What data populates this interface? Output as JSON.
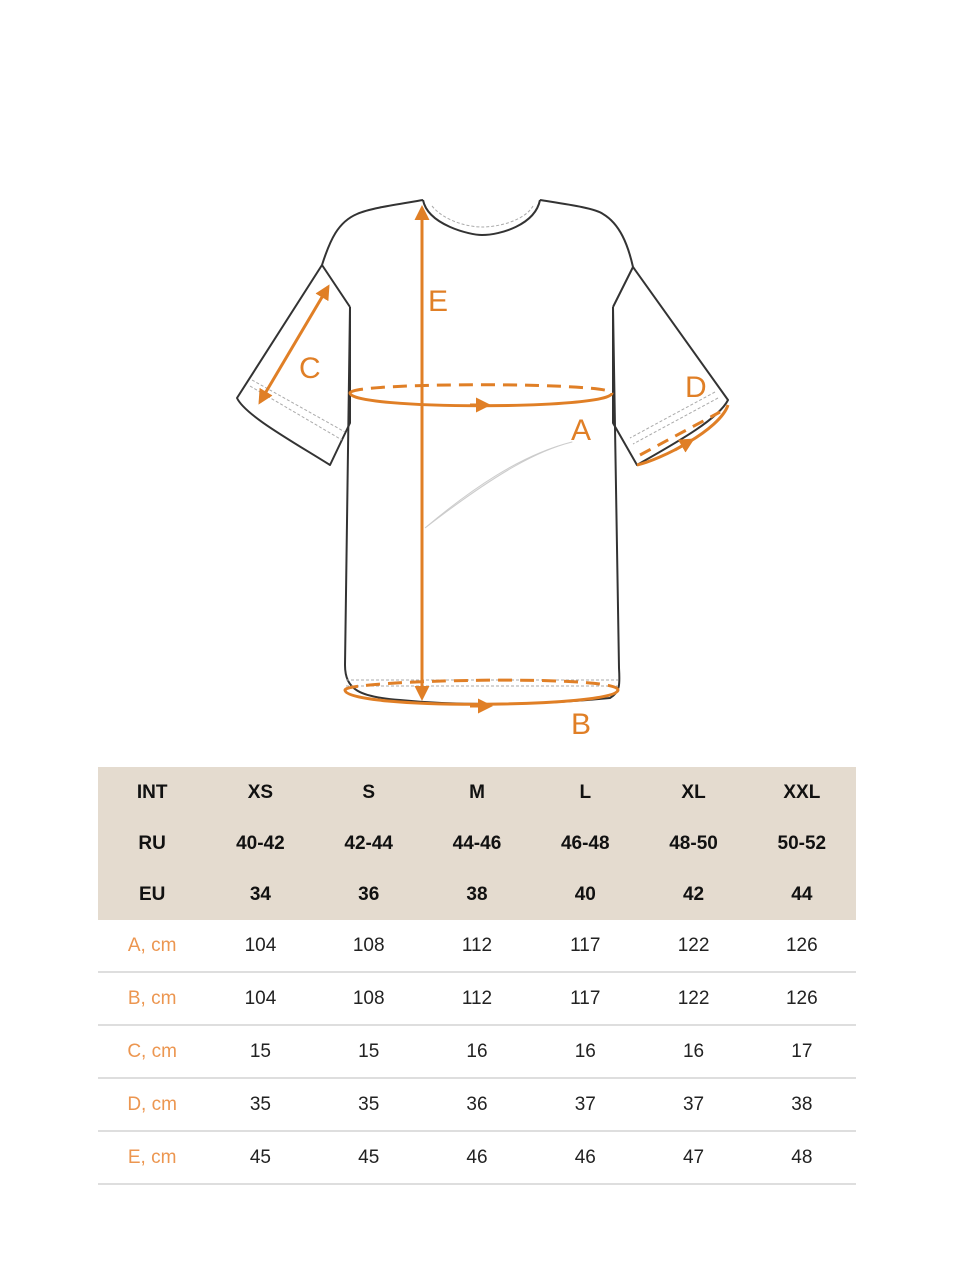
{
  "diagram": {
    "labels": {
      "A": "A",
      "B": "B",
      "C": "C",
      "D": "D",
      "E": "E"
    },
    "accent_color": "#e07f26"
  },
  "size_table": {
    "header_rows": [
      [
        "INT",
        "XS",
        "S",
        "M",
        "L",
        "XL",
        "XXL"
      ],
      [
        "RU",
        "40-42",
        "42-44",
        "44-46",
        "46-48",
        "48-50",
        "50-52"
      ],
      [
        "EU",
        "34",
        "36",
        "38",
        "40",
        "42",
        "44"
      ]
    ],
    "measurement_rows": [
      [
        "A, cm",
        "104",
        "108",
        "112",
        "117",
        "122",
        "126"
      ],
      [
        "B, cm",
        "104",
        "108",
        "112",
        "117",
        "122",
        "126"
      ],
      [
        "C, cm",
        "15",
        "15",
        "16",
        "16",
        "16",
        "17"
      ],
      [
        "D, cm",
        "35",
        "35",
        "36",
        "37",
        "37",
        "38"
      ],
      [
        "E, cm",
        "45",
        "45",
        "46",
        "46",
        "47",
        "48"
      ]
    ],
    "header_bg": "#e4dbcf",
    "label_color": "#ec9650"
  }
}
